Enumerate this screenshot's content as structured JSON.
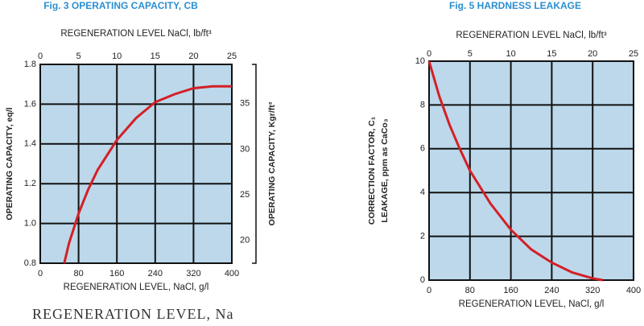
{
  "chart_data": [
    {
      "type": "line",
      "title": "Fig. 3 OPERATING CAPACITY, CB",
      "x2_label": "REGENERATION LEVEL  NaCl, lb/ft³",
      "x_label": "REGENERATION LEVEL, NaCl, g/l",
      "y_label": "OPERATING CAPACITY, eq/l",
      "y2_label": "OPERATING CAPACITY, Kgr/ft³",
      "annotation": "REGENERATION LEVEL, Na",
      "x": [
        50,
        60,
        80,
        100,
        120,
        160,
        200,
        240,
        280,
        320,
        360,
        400
      ],
      "values": [
        0.8,
        0.9,
        1.05,
        1.17,
        1.27,
        1.42,
        1.53,
        1.61,
        1.65,
        1.68,
        1.69,
        1.69
      ],
      "color": "#d41f26",
      "xlim": [
        0,
        400
      ],
      "xticks": [
        0,
        80,
        160,
        240,
        320,
        400
      ],
      "x2lim": [
        0,
        25
      ],
      "x2ticks": [
        0,
        5,
        10,
        15,
        20,
        25
      ],
      "ylim": [
        0.8,
        1.8
      ],
      "yticks": [
        0.8,
        {
          "value": 1,
          "label": "1.0"
        },
        1.2,
        1.4,
        1.6,
        1.8
      ],
      "y2lim": [
        17.5,
        39.3
      ],
      "y2ticks": [
        20,
        25,
        30,
        35
      ],
      "grid": true
    },
    {
      "type": "line",
      "title": "Fig. 5 HARDNESS LEAKAGE",
      "x2_label": "REGENERATION LEVEL  NaCl, lb/ft³",
      "x_label": "REGENERATION LEVEL, NaCl, g/l",
      "y_label": "CORRECTION FACTOR, C₁",
      "y_label_2": "LEAKAGE, ppm as CaCo₃",
      "x": [
        0,
        20,
        40,
        60,
        80,
        120,
        160,
        200,
        240,
        280,
        320,
        340
      ],
      "values": [
        10,
        8.4,
        7.1,
        6.0,
        5.0,
        3.5,
        2.3,
        1.4,
        0.8,
        0.35,
        0.08,
        0
      ],
      "color": "#d41f26",
      "xlim": [
        0,
        400
      ],
      "xticks": [
        0,
        80,
        160,
        240,
        320,
        400
      ],
      "x2lim": [
        0,
        25
      ],
      "x2ticks": [
        0,
        5,
        10,
        15,
        20,
        25
      ],
      "ylim": [
        0,
        10
      ],
      "yticks": [
        0,
        2,
        4,
        6,
        8,
        10
      ],
      "grid": true
    }
  ]
}
